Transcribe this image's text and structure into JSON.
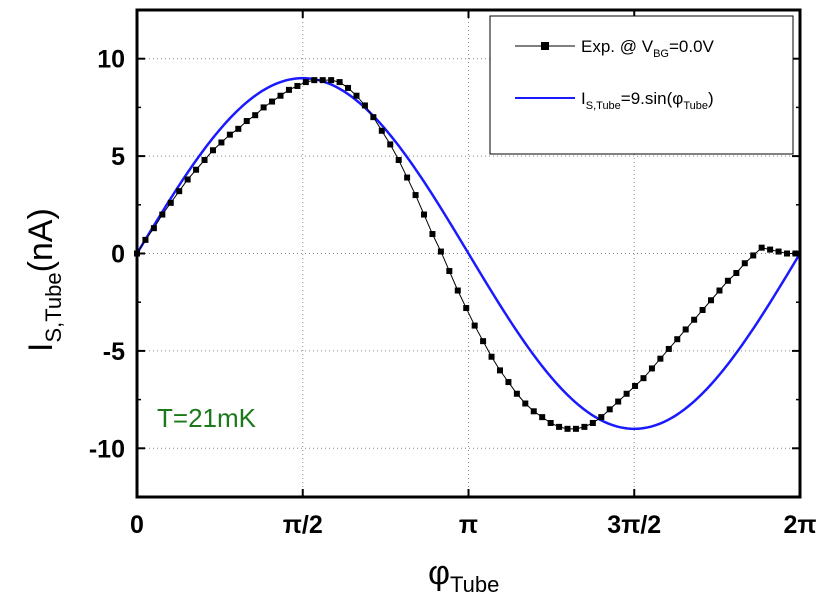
{
  "chart_data": {
    "type": "line",
    "x_axis": {
      "label_main": "φ",
      "label_sub": "Tube",
      "lim": [
        0,
        6.2832
      ],
      "ticks": [
        {
          "value": 0,
          "label": "0"
        },
        {
          "value": 1.5708,
          "label": "π/2"
        },
        {
          "value": 3.1416,
          "label": "π"
        },
        {
          "value": 4.7124,
          "label": "3π/2"
        },
        {
          "value": 6.2832,
          "label": "2π"
        }
      ]
    },
    "y_axis": {
      "label_main": "I",
      "label_sub": "S,Tube",
      "label_unit": "(nA)",
      "lim": [
        -12.5,
        12.5
      ],
      "ticks": [
        {
          "value": 10,
          "label": "10"
        },
        {
          "value": 5,
          "label": "5"
        },
        {
          "value": 0,
          "label": "0"
        },
        {
          "value": -5,
          "label": "-5"
        },
        {
          "value": -10,
          "label": "-10"
        }
      ]
    },
    "grid": true,
    "legend_position": "top-right",
    "annotation": "T=21mK",
    "series": [
      {
        "name_parts": [
          "Exp. @ V",
          "BG",
          "=0.0V"
        ],
        "color": "#000000",
        "marker": "square",
        "x": [
          0.0,
          0.08,
          0.16,
          0.24,
          0.32,
          0.4,
          0.48,
          0.56,
          0.64,
          0.72,
          0.8,
          0.88,
          0.96,
          1.04,
          1.12,
          1.2,
          1.28,
          1.36,
          1.44,
          1.52,
          1.6,
          1.68,
          1.76,
          1.84,
          1.92,
          2.0,
          2.08,
          2.16,
          2.24,
          2.32,
          2.4,
          2.48,
          2.56,
          2.64,
          2.72,
          2.8,
          2.88,
          2.96,
          3.04,
          3.12,
          3.2,
          3.28,
          3.36,
          3.44,
          3.52,
          3.6,
          3.68,
          3.76,
          3.84,
          3.92,
          4.0,
          4.08,
          4.16,
          4.24,
          4.32,
          4.4,
          4.48,
          4.56,
          4.64,
          4.72,
          4.8,
          4.88,
          4.96,
          5.04,
          5.12,
          5.2,
          5.28,
          5.36,
          5.44,
          5.52,
          5.6,
          5.68,
          5.76,
          5.84,
          5.92,
          6.0,
          6.08,
          6.16,
          6.24
        ],
        "y": [
          0.0,
          0.7,
          1.3,
          2.0,
          2.6,
          3.2,
          3.8,
          4.3,
          4.8,
          5.3,
          5.7,
          6.1,
          6.4,
          6.8,
          7.1,
          7.5,
          7.8,
          8.1,
          8.4,
          8.6,
          8.8,
          8.9,
          8.9,
          8.9,
          8.8,
          8.5,
          8.1,
          7.6,
          7.0,
          6.3,
          5.6,
          4.8,
          3.9,
          3.0,
          2.0,
          1.0,
          0.1,
          -0.9,
          -1.9,
          -2.8,
          -3.7,
          -4.5,
          -5.3,
          -6.0,
          -6.6,
          -7.2,
          -7.7,
          -8.1,
          -8.4,
          -8.7,
          -8.9,
          -9.0,
          -9.0,
          -8.9,
          -8.7,
          -8.4,
          -8.0,
          -7.6,
          -7.2,
          -6.8,
          -6.4,
          -5.9,
          -5.4,
          -4.9,
          -4.4,
          -3.9,
          -3.4,
          -2.9,
          -2.4,
          -1.9,
          -1.4,
          -1.0,
          -0.5,
          -0.1,
          0.3,
          0.2,
          0.1,
          0.0,
          0.0
        ]
      },
      {
        "name_parts": [
          "I",
          "S,Tube",
          "=9.sin(φ",
          "Tube",
          ")"
        ],
        "color": "#1a1aff",
        "marker": "none",
        "function": "9*sin(x)"
      }
    ]
  }
}
